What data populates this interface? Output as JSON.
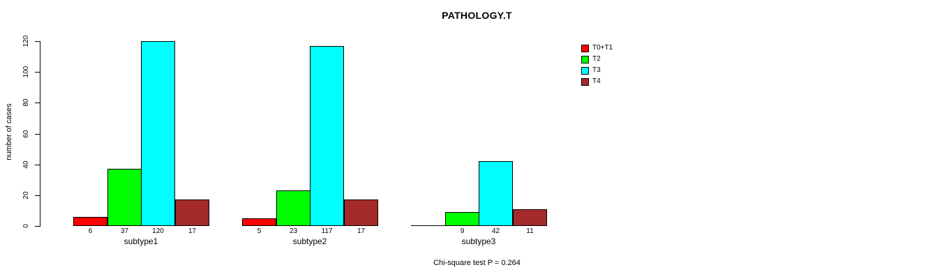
{
  "chart_data": {
    "type": "bar",
    "title": "PATHOLOGY.T",
    "ylabel": "number of cases",
    "xlabel": "",
    "ylim": [
      0,
      120
    ],
    "yticks": [
      0,
      20,
      40,
      60,
      80,
      100,
      120
    ],
    "grid": false,
    "legend_position": "right",
    "categories": [
      "subtype1",
      "subtype2",
      "subtype3"
    ],
    "series": [
      {
        "name": "T0+T1",
        "color": "#ff0000",
        "values": [
          6,
          5,
          0
        ]
      },
      {
        "name": "T2",
        "color": "#00ff00",
        "values": [
          37,
          23,
          9
        ]
      },
      {
        "name": "T3",
        "color": "#00ffff",
        "values": [
          120,
          117,
          42
        ]
      },
      {
        "name": "T4",
        "color": "#a52a2a",
        "values": [
          17,
          17,
          11
        ]
      }
    ],
    "value_labels": [
      [
        "6",
        "37",
        "120",
        "17"
      ],
      [
        "5",
        "23",
        "117",
        "17"
      ],
      [
        "",
        "9",
        "42",
        "11"
      ]
    ],
    "annotation": "Chi-square test P = 0.264"
  },
  "colors": {
    "axis": "#000000",
    "background": "#ffffff"
  }
}
